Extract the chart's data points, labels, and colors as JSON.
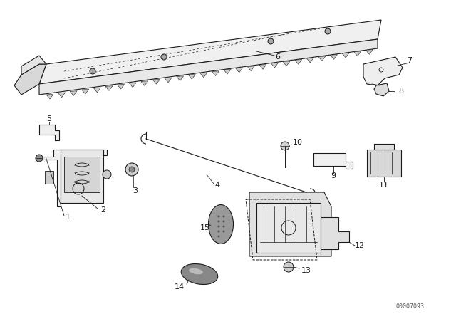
{
  "bg_color": "#ffffff",
  "line_color": "#1a1a1a",
  "watermark": "00007093",
  "figsize": [
    6.4,
    4.48
  ],
  "dpi": 100
}
